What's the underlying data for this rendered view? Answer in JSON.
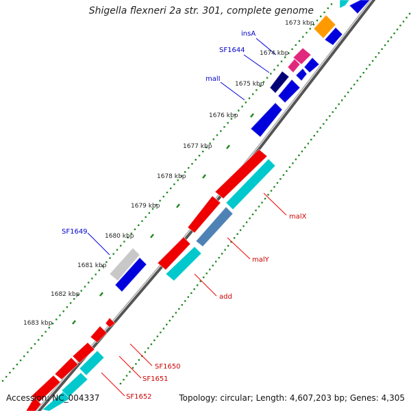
{
  "title": "Shigella flexneri 2a str. 301, complete genome",
  "accession": "Accession: NC_004337",
  "summary": "Topology: circular; Length: 4,607,203 bp; Genes: 4,305",
  "colors": {
    "forward": "#ee0000",
    "reverse": "#0000dd",
    "cyan": "#00c8cc",
    "steel": "#4f82b4",
    "gray": "#c8c8c8",
    "magenta": "#e0287c",
    "orange": "#ff9900",
    "navy": "#000077",
    "backbone": "#555555",
    "ticks": "#228822",
    "blue_label": "#0000cc",
    "red_label": "#cc0000"
  },
  "ruler": [
    "1673 kbp",
    "1674 kbp",
    "1675 kbp",
    "1676 kbp",
    "1677 kbp",
    "1678 kbp",
    "1679 kbp",
    "1680 kbp",
    "1681 kbp",
    "1682 kbp",
    "1683 kbp"
  ],
  "gene_labels": {
    "blue": [
      "insA",
      "SF1644",
      "malI",
      "SF1649"
    ],
    "red": [
      "malX",
      "malY",
      "add",
      "SF1650",
      "SF1651",
      "SF1652"
    ]
  }
}
